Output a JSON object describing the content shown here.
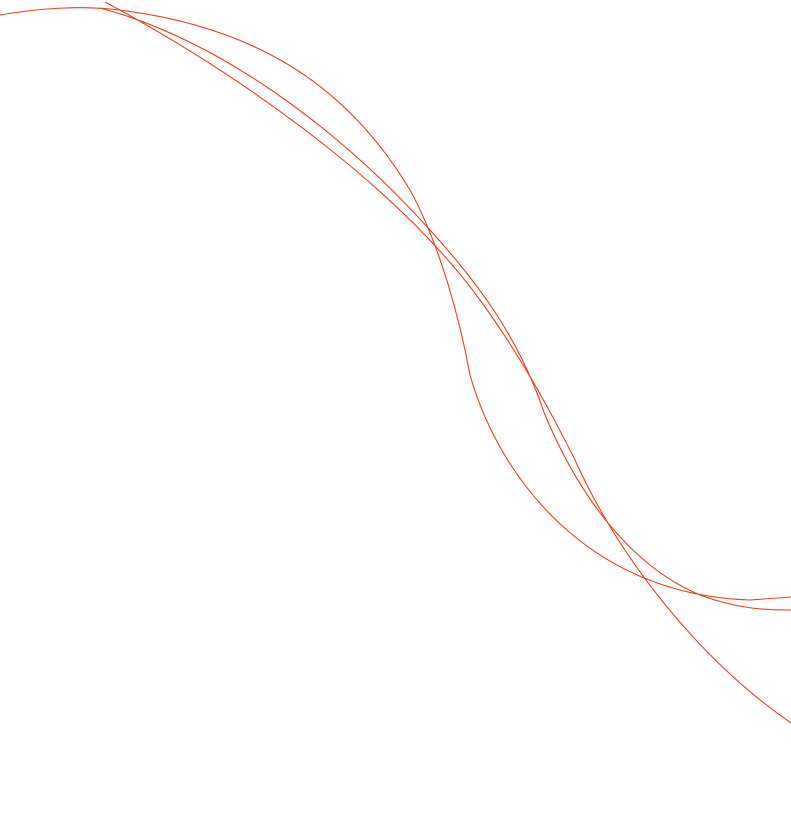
{
  "colors": {
    "stroke": "#e8401c",
    "background": "#ffffff"
  }
}
